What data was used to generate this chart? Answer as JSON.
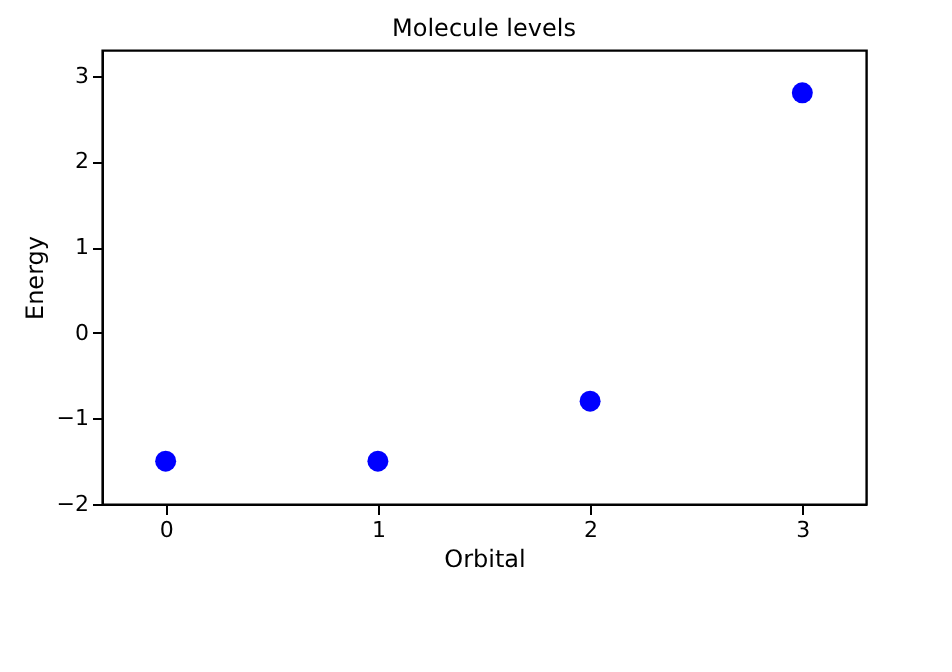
{
  "chart_data": {
    "type": "scatter",
    "title": "Molecule levels",
    "xlabel": "Orbital",
    "ylabel": "Energy",
    "x": [
      0,
      1,
      2,
      3
    ],
    "series": [
      {
        "color": "#0000ff",
        "values": [
          -1.5,
          -1.5,
          -0.8,
          2.8
        ]
      }
    ],
    "xlim": [
      -0.3,
      3.3
    ],
    "xticks": [
      0,
      1,
      2,
      3
    ],
    "ylim": [
      -2,
      3.3
    ],
    "yticks": [
      {
        "value": -2,
        "label": "−2"
      },
      {
        "value": -1,
        "label": "−1"
      },
      0,
      1,
      2,
      3
    ],
    "marker": "circle",
    "grid": false,
    "legend": false
  }
}
